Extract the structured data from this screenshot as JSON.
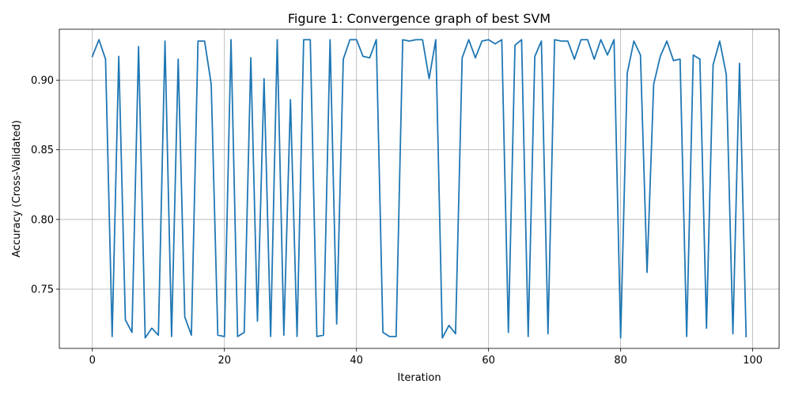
{
  "chart_data": {
    "type": "line",
    "title": "Figure 1: Convergence graph of best SVM",
    "xlabel": "Iteration",
    "ylabel": "Accuracy (Cross-Validated)",
    "xlim": [
      -5,
      104
    ],
    "ylim": [
      0.7075,
      0.9365
    ],
    "xticks": [
      0,
      20,
      40,
      60,
      80,
      100
    ],
    "xtick_labels": [
      "0",
      "20",
      "40",
      "60",
      "80",
      "100"
    ],
    "yticks": [
      0.75,
      0.8,
      0.85,
      0.9
    ],
    "ytick_labels": [
      "0.75",
      "0.80",
      "0.85",
      "0.90"
    ],
    "grid": true,
    "series": [
      {
        "color": "#1f77b4",
        "x": [
          0,
          1,
          2,
          3,
          4,
          5,
          6,
          7,
          8,
          9,
          10,
          11,
          12,
          13,
          14,
          15,
          16,
          17,
          18,
          19,
          20,
          21,
          22,
          23,
          24,
          25,
          26,
          27,
          28,
          29,
          30,
          31,
          32,
          33,
          34,
          35,
          36,
          37,
          38,
          39,
          40,
          41,
          42,
          43,
          44,
          45,
          46,
          47,
          48,
          49,
          50,
          51,
          52,
          53,
          54,
          55,
          56,
          57,
          58,
          59,
          60,
          61,
          62,
          63,
          64,
          65,
          66,
          67,
          68,
          69,
          70,
          71,
          72,
          73,
          74,
          75,
          76,
          77,
          78,
          79,
          80,
          81,
          82,
          83,
          84,
          85,
          86,
          87,
          88,
          89,
          90,
          91,
          92,
          93,
          94,
          95,
          96,
          97,
          98,
          99
        ],
        "y": [
          0.917,
          0.929,
          0.915,
          0.716,
          0.917,
          0.728,
          0.719,
          0.924,
          0.715,
          0.722,
          0.717,
          0.928,
          0.716,
          0.915,
          0.73,
          0.717,
          0.928,
          0.928,
          0.897,
          0.717,
          0.716,
          0.929,
          0.716,
          0.719,
          0.916,
          0.727,
          0.901,
          0.716,
          0.929,
          0.717,
          0.886,
          0.716,
          0.929,
          0.929,
          0.716,
          0.717,
          0.929,
          0.725,
          0.915,
          0.929,
          0.929,
          0.917,
          0.916,
          0.929,
          0.719,
          0.716,
          0.716,
          0.929,
          0.928,
          0.929,
          0.929,
          0.901,
          0.929,
          0.715,
          0.724,
          0.718,
          0.916,
          0.929,
          0.916,
          0.928,
          0.929,
          0.926,
          0.929,
          0.719,
          0.925,
          0.929,
          0.716,
          0.917,
          0.928,
          0.718,
          0.929,
          0.928,
          0.928,
          0.915,
          0.929,
          0.929,
          0.915,
          0.929,
          0.918,
          0.929,
          0.715,
          0.905,
          0.928,
          0.918,
          0.762,
          0.897,
          0.917,
          0.928,
          0.914,
          0.915,
          0.716,
          0.918,
          0.915,
          0.722,
          0.911,
          0.928,
          0.904,
          0.718,
          0.912,
          0.716
        ]
      }
    ]
  }
}
